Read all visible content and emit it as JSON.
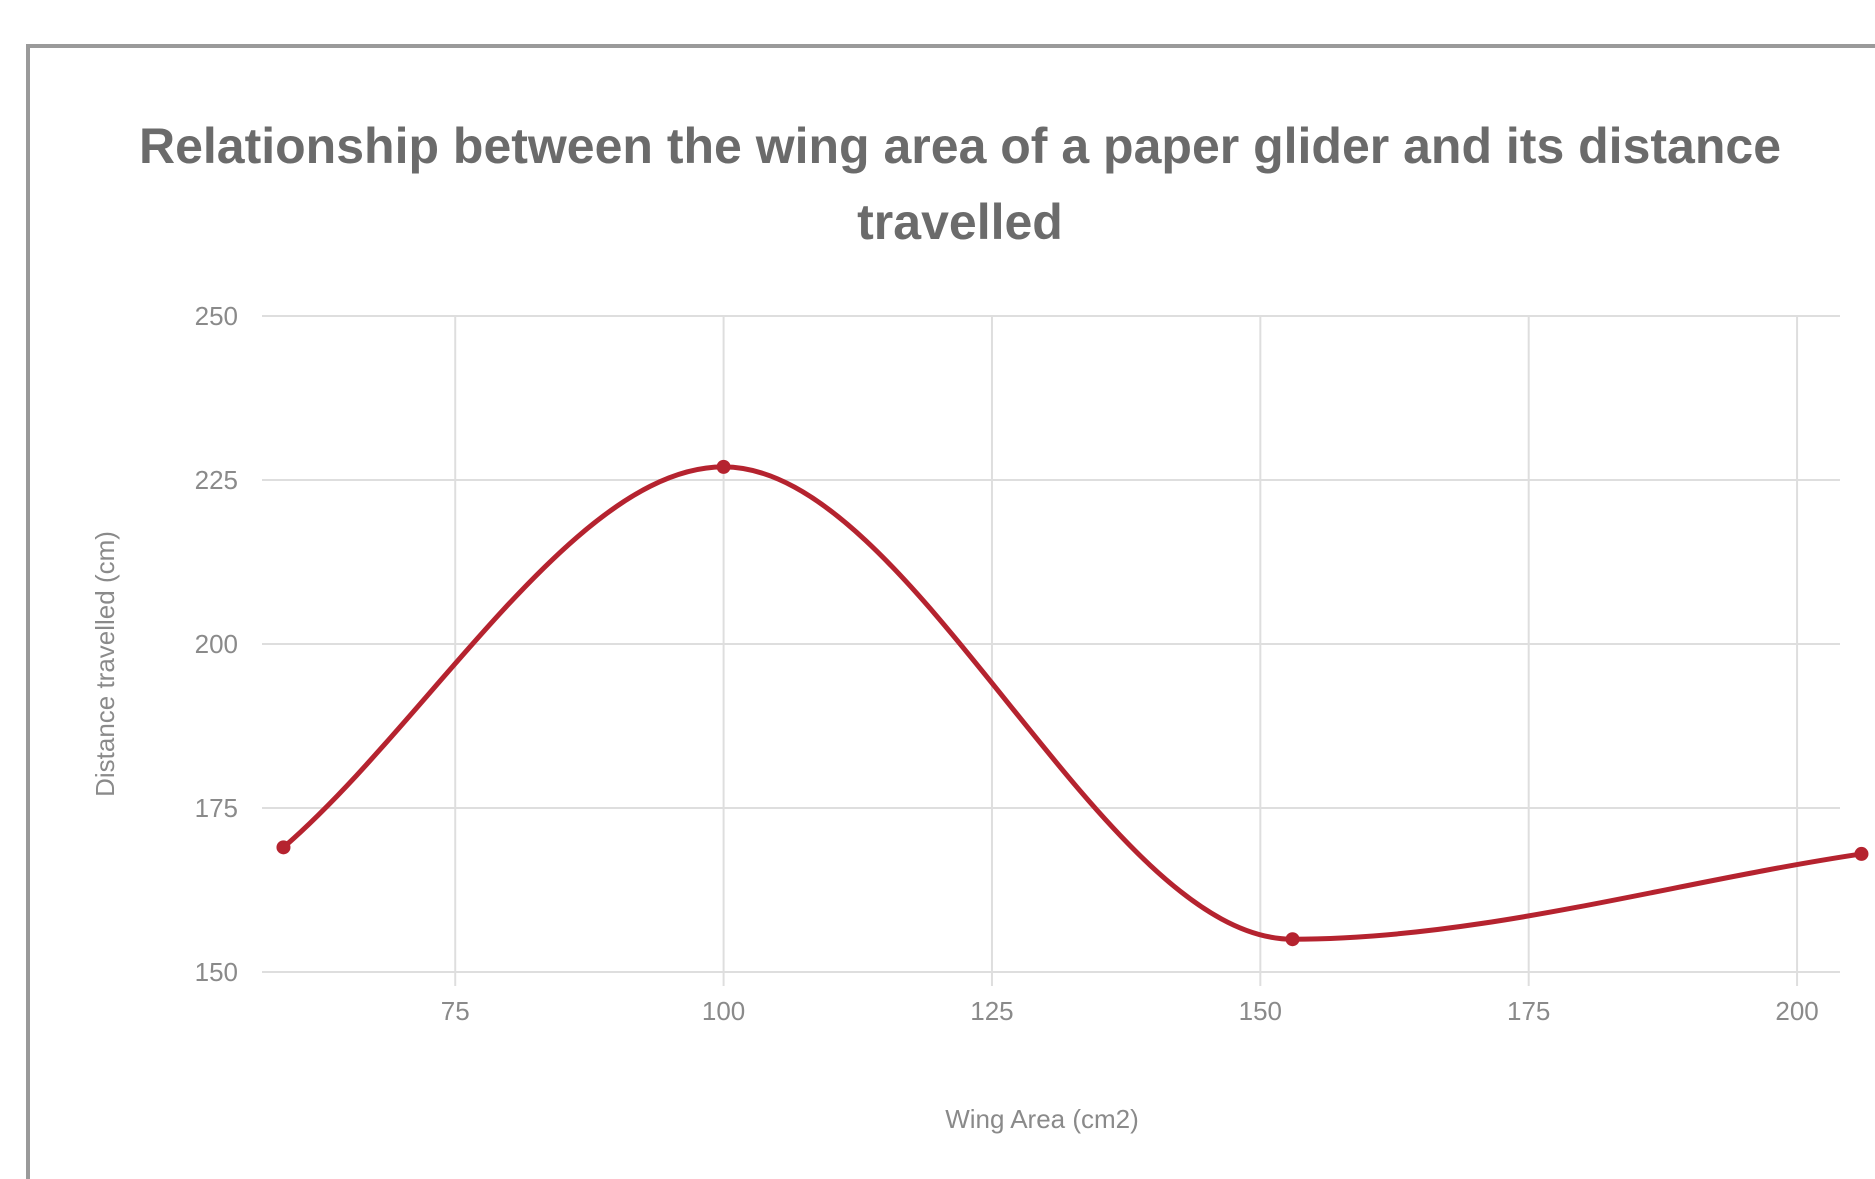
{
  "chart_data": {
    "type": "line",
    "title": "Relationship between the wing area of a paper glider and its distance travelled",
    "xlabel": "Wing Area (cm2)",
    "ylabel": "Distance travelled (cm)",
    "xlim": [
      57,
      204
    ],
    "ylim": [
      150,
      250
    ],
    "x_ticks": [
      75,
      100,
      125,
      150,
      175,
      200
    ],
    "y_ticks": [
      150,
      175,
      200,
      225,
      250
    ],
    "grid": true,
    "smooth": true,
    "series": [
      {
        "x": [
          59,
          100,
          153,
          206
        ],
        "y": [
          169,
          227,
          155,
          168
        ],
        "color": "#b5232f"
      }
    ]
  }
}
